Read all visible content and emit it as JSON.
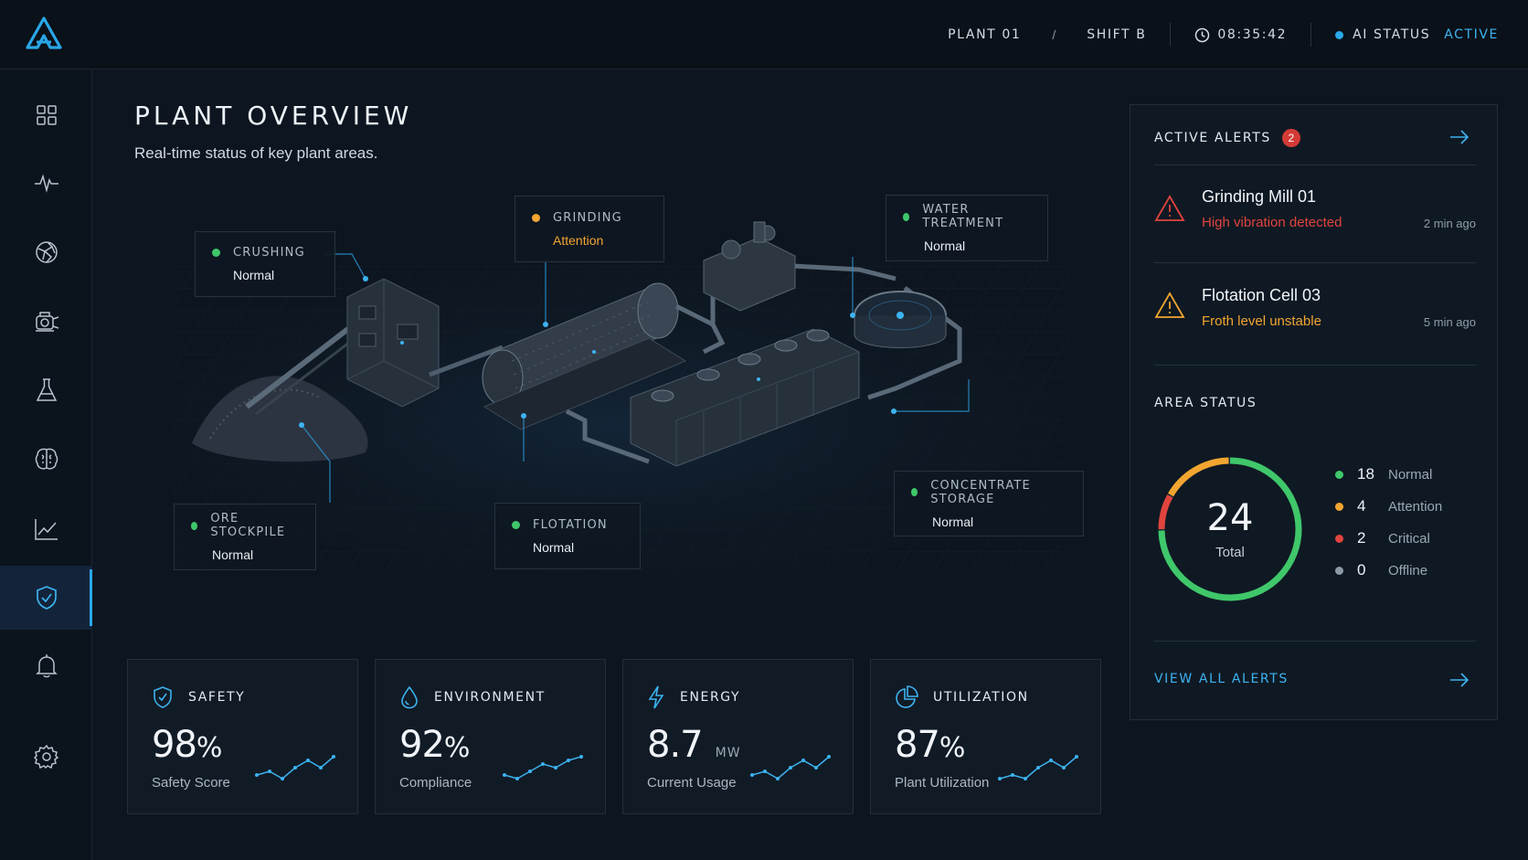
{
  "header": {
    "plant": "PLANT 01",
    "separator": "/",
    "shift": "SHIFT B",
    "time": "08:35:42",
    "ai_status_label": "AI STATUS",
    "ai_status_value": "ACTIVE"
  },
  "sidebar": {
    "items": [
      {
        "name": "dashboard-grid-icon"
      },
      {
        "name": "activity-pulse-icon"
      },
      {
        "name": "ore-rock-icon"
      },
      {
        "name": "equipment-crusher-icon"
      },
      {
        "name": "lab-flask-icon"
      },
      {
        "name": "ai-brain-icon"
      },
      {
        "name": "trend-chart-icon"
      },
      {
        "name": "safety-shield-icon",
        "active": true
      },
      {
        "name": "bell-icon"
      },
      {
        "name": "settings-gear-icon"
      }
    ]
  },
  "overview": {
    "title": "PLANT OVERVIEW",
    "subtitle": "Real-time status of key plant areas."
  },
  "areas": [
    {
      "name": "CRUSHING",
      "state": "Normal",
      "color": "#3fc76a"
    },
    {
      "name": "GRINDING",
      "state": "Attention",
      "color": "#f2a530"
    },
    {
      "name": "WATER TREATMENT",
      "state": "Normal",
      "color": "#3fc76a"
    },
    {
      "name": "ORE STOCKPILE",
      "state": "Normal",
      "color": "#3fc76a"
    },
    {
      "name": "FLOTATION",
      "state": "Normal",
      "color": "#3fc76a"
    },
    {
      "name": "CONCENTRATE STORAGE",
      "state": "Normal",
      "color": "#3fc76a"
    }
  ],
  "kpis": [
    {
      "label": "SAFETY",
      "value": "98",
      "unit": "%",
      "caption": "Safety Score",
      "icon": "shield-check-icon",
      "trend": [
        3,
        4,
        2,
        5,
        7,
        5,
        8
      ]
    },
    {
      "label": "ENVIRONMENT",
      "value": "92",
      "unit": "%",
      "caption": "Compliance",
      "icon": "water-drop-icon",
      "trend": [
        3,
        2,
        4,
        6,
        5,
        7,
        8
      ]
    },
    {
      "label": "ENERGY",
      "value": "8.7",
      "unit": "MW",
      "caption": "Current Usage",
      "icon": "lightning-icon",
      "trend": [
        3,
        4,
        2,
        5,
        7,
        5,
        8
      ]
    },
    {
      "label": "UTILIZATION",
      "value": "87",
      "unit": "%",
      "caption": "Plant Utilization",
      "icon": "pie-chart-icon",
      "trend": [
        3,
        4,
        3,
        6,
        8,
        6,
        9
      ]
    }
  ],
  "alerts_panel": {
    "title": "ACTIVE ALERTS",
    "count": "2",
    "alerts": [
      {
        "title": "Grinding Mill 01",
        "desc": "High vibration detected",
        "time": "2 min ago",
        "color": "#e0443d"
      },
      {
        "title": "Flotation Cell 03",
        "desc": "Froth level unstable",
        "time": "5 min ago",
        "color": "#f2a530"
      }
    ],
    "area_status_title": "AREA STATUS",
    "total": "24",
    "total_label": "Total",
    "legend": [
      {
        "count": "18",
        "label": "Normal",
        "color": "#3fc76a"
      },
      {
        "count": "4",
        "label": "Attention",
        "color": "#f2a530"
      },
      {
        "count": "2",
        "label": "Critical",
        "color": "#e0443d"
      },
      {
        "count": "0",
        "label": "Offline",
        "color": "#8d99a6"
      }
    ],
    "view_all": "VIEW ALL ALERTS"
  }
}
